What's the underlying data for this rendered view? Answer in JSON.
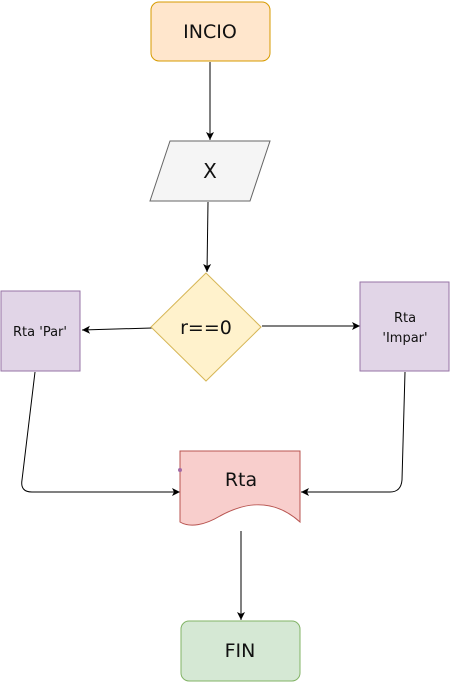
{
  "nodes": {
    "start": {
      "label": "INCIO",
      "fill": "#ffe6cc",
      "stroke": "#d79b00"
    },
    "input": {
      "label": "X",
      "fill": "#f5f5f5",
      "stroke": "#666666"
    },
    "decision": {
      "label": "r==0",
      "fill": "#fff2cc",
      "stroke": "#d6b656"
    },
    "left_output": {
      "label": "Rta 'Par'",
      "fill": "#e1d5e7",
      "stroke": "#9673a6"
    },
    "right_output_line1": {
      "label": "Rta"
    },
    "right_output_line2": {
      "label": "'Impar'"
    },
    "right_output": {
      "fill": "#e1d5e7",
      "stroke": "#9673a6"
    },
    "document": {
      "label": "Rta",
      "fill": "#f8cecc",
      "stroke": "#b85450"
    },
    "end": {
      "label": "FIN",
      "fill": "#d5e8d4",
      "stroke": "#82b366"
    }
  },
  "edge_color": "#000000"
}
